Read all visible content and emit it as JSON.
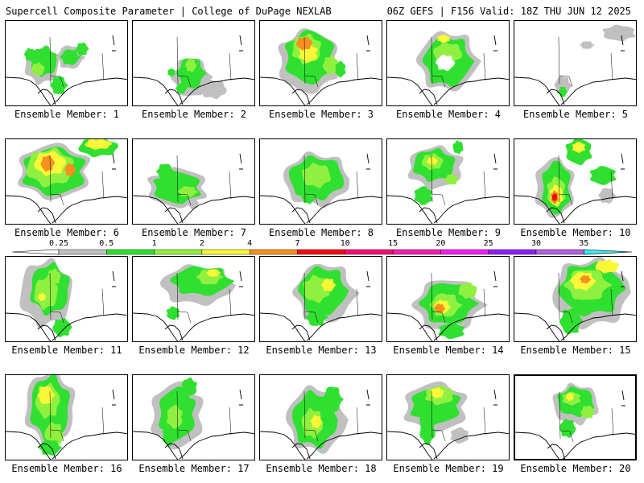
{
  "header": {
    "left": "Supercell Composite Parameter | College of DuPage NEXLAB",
    "right": "06Z GEFS | F156 Valid: 18Z THU JUN 12 2025"
  },
  "colorbar": {
    "ticks": [
      "0.25",
      "0.5",
      "1",
      "2",
      "4",
      "7",
      "10",
      "15",
      "20",
      "25",
      "30",
      "35"
    ],
    "colors": [
      "#c0c0c0",
      "#30e030",
      "#90f040",
      "#f8f838",
      "#f89020",
      "#f01010",
      "#f01070",
      "#f020b0",
      "#f020f0",
      "#9020f0",
      "#b060e0",
      "#40e8f0"
    ]
  },
  "members": [
    {
      "label": "Ensemble Member: 1"
    },
    {
      "label": "Ensemble Member: 2"
    },
    {
      "label": "Ensemble Member: 3"
    },
    {
      "label": "Ensemble Member: 4"
    },
    {
      "label": "Ensemble Member: 5"
    },
    {
      "label": "Ensemble Member: 6"
    },
    {
      "label": "Ensemble Member: 7"
    },
    {
      "label": "Ensemble Member: 8"
    },
    {
      "label": "Ensemble Member: 9"
    },
    {
      "label": "Ensemble Member: 10"
    },
    {
      "label": "Ensemble Member: 11"
    },
    {
      "label": "Ensemble Member: 12"
    },
    {
      "label": "Ensemble Member: 13"
    },
    {
      "label": "Ensemble Member: 14"
    },
    {
      "label": "Ensemble Member: 15"
    },
    {
      "label": "Ensemble Member: 16"
    },
    {
      "label": "Ensemble Member: 17"
    },
    {
      "label": "Ensemble Member: 18"
    },
    {
      "label": "Ensemble Member: 19"
    },
    {
      "label": "Ensemble Member: 20"
    }
  ]
}
